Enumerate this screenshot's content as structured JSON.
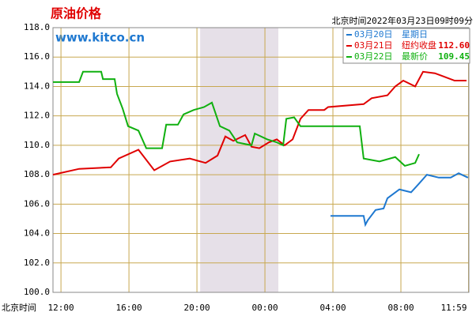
{
  "chart_data": {
    "type": "line",
    "title": "原油价格",
    "subtitle": "www.kitco.cn",
    "timestamp": "北京时间2022年03月23日09时09分",
    "x_label": "北京时间",
    "xlim": [
      -0.47,
      24
    ],
    "ylim": [
      100,
      118
    ],
    "yticks": [
      {
        "value": 100,
        "label": "100.0"
      },
      {
        "value": 102,
        "label": "102.0"
      },
      {
        "value": 104,
        "label": "104.0"
      },
      {
        "value": 106,
        "label": "106.0"
      },
      {
        "value": 108,
        "label": "108.0"
      },
      {
        "value": 110,
        "label": "110.0"
      },
      {
        "value": 112,
        "label": "112.0"
      },
      {
        "value": 114,
        "label": "114.0"
      },
      {
        "value": 116,
        "label": "116.0"
      },
      {
        "value": 118,
        "label": "118.0"
      }
    ],
    "xticks": [
      {
        "value": 0,
        "label": "12:00"
      },
      {
        "value": 4,
        "label": "16:00"
      },
      {
        "value": 8,
        "label": "20:00"
      },
      {
        "value": 12,
        "label": "00:00"
      },
      {
        "value": 16,
        "label": "04:00"
      },
      {
        "value": 20,
        "label": "08:00"
      },
      {
        "value": 23.98,
        "label": "11:59"
      }
    ],
    "grid": true,
    "highlight_x": [
      8.19,
      12.79
    ],
    "series": [
      {
        "name": "03月20日",
        "note": "星期日",
        "color": "#1e78d0",
        "x": [
          15.86,
          17.81,
          17.91,
          18.05,
          18.51,
          18.98,
          19.21,
          19.91,
          20.6,
          21.07,
          21.53,
          22.23,
          22.93,
          23.4,
          23.95
        ],
        "values": [
          105.2,
          105.2,
          104.6,
          104.9,
          105.6,
          105.7,
          106.4,
          107.0,
          106.8,
          107.4,
          108.0,
          107.8,
          107.8,
          108.1,
          107.8
        ]
      },
      {
        "name": "03月21日",
        "note": "纽约收盘",
        "quote": 112.6,
        "quote_label": "112.60",
        "color": "#e00000",
        "x": [
          -0.47,
          1.07,
          2.93,
          3.4,
          4.56,
          5.49,
          6.42,
          7.58,
          8.51,
          9.21,
          9.67,
          10.14,
          10.84,
          11.21,
          11.67,
          12.23,
          12.7,
          13.16,
          13.63,
          14.09,
          14.56,
          15.49,
          15.72,
          17.81,
          18.28,
          19.21,
          19.67,
          20.14,
          20.84,
          21.3,
          22.0,
          22.47,
          23.16,
          23.86
        ],
        "values": [
          108.0,
          108.4,
          108.5,
          109.1,
          109.7,
          108.3,
          108.9,
          109.1,
          108.8,
          109.3,
          110.6,
          110.3,
          110.7,
          109.9,
          109.8,
          110.2,
          110.4,
          110.0,
          110.4,
          111.8,
          112.4,
          112.4,
          112.6,
          112.8,
          113.2,
          113.4,
          114.0,
          114.4,
          114.0,
          115.0,
          114.9,
          114.7,
          114.4,
          114.4
        ]
      },
      {
        "name": "03月22日",
        "note": "最新价",
        "quote": 109.45,
        "quote_label": "109.45",
        "color": "#10b010",
        "x": [
          -0.47,
          1.07,
          1.3,
          2.37,
          2.47,
          3.16,
          3.3,
          3.63,
          3.95,
          4.56,
          5.02,
          5.95,
          6.19,
          6.88,
          7.21,
          7.81,
          8.42,
          8.88,
          9.35,
          9.91,
          10.37,
          11.21,
          11.4,
          12.14,
          12.7,
          13.07,
          13.26,
          13.72,
          14.09,
          17.58,
          17.81,
          18.74,
          19.67,
          20.23,
          20.84,
          21.07
        ],
        "values": [
          114.3,
          114.3,
          115.0,
          115.0,
          114.5,
          114.5,
          113.5,
          112.5,
          111.3,
          111.0,
          109.8,
          109.8,
          111.4,
          111.4,
          112.1,
          112.4,
          112.6,
          112.9,
          111.3,
          111.0,
          110.2,
          110.0,
          110.8,
          110.4,
          110.2,
          110.0,
          111.8,
          111.9,
          111.3,
          111.3,
          109.1,
          108.9,
          109.2,
          108.6,
          108.8,
          109.4
        ]
      }
    ]
  }
}
